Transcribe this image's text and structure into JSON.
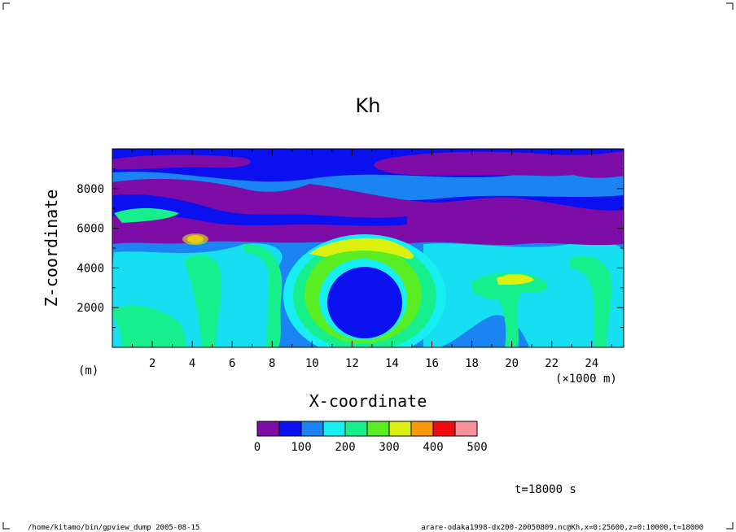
{
  "chart_data": {
    "type": "heatmap",
    "title": "Kh",
    "xlabel": "X-coordinate",
    "ylabel": "Z-coordinate",
    "x_unit_left": "(m)",
    "x_unit_right": "(×1000 m)",
    "xlim": [
      0,
      25.6
    ],
    "ylim": [
      0,
      10000
    ],
    "x_ticks": [
      2,
      4,
      6,
      8,
      10,
      12,
      14,
      16,
      18,
      20,
      22,
      24
    ],
    "x_tick_labels": [
      "2",
      "4",
      "6",
      "8",
      "10",
      "12",
      "14",
      "16",
      "18",
      "20",
      "22",
      "24"
    ],
    "y_ticks": [
      2000,
      4000,
      6000,
      8000
    ],
    "y_tick_labels": [
      "2000",
      "4000",
      "6000",
      "8000"
    ],
    "colorbar": {
      "bounds": [
        0,
        50,
        100,
        150,
        200,
        250,
        300,
        350,
        400,
        450,
        500
      ],
      "labels": [
        "0",
        "100",
        "200",
        "300",
        "400",
        "500"
      ],
      "colors": [
        "#7d0da6",
        "#0b10ee",
        "#1a85f2",
        "#16eef2",
        "#17ef8c",
        "#59ee23",
        "#dcf00f",
        "#f89a10",
        "#ef0b10",
        "#f6909a"
      ]
    },
    "features": [
      {
        "x": 12.3,
        "z": 2500,
        "level": "60-90",
        "shape": "low-value core inside ring"
      },
      {
        "x": 12.5,
        "z": 3000,
        "level": "250-350",
        "shape": "ring around core"
      },
      {
        "x": 4.2,
        "z": 5300,
        "level": "300-400",
        "shape": "maximum near top of mixed layer"
      },
      {
        "x": 20.0,
        "z": 3500,
        "level": "250-350",
        "shape": "plume"
      },
      {
        "x": 12.0,
        "z": 7000,
        "level": "0-50",
        "shape": "low-value band aloft"
      }
    ]
  },
  "annotations": {
    "time": "t=18000 s",
    "footer_left": "/home/kitamo/bin/gpview_dump  2005-08-15",
    "footer_right": "arare-odaka1998-dx200-20050809.nc@Kh,x=0:25600,z=0:10000,t=18000"
  }
}
